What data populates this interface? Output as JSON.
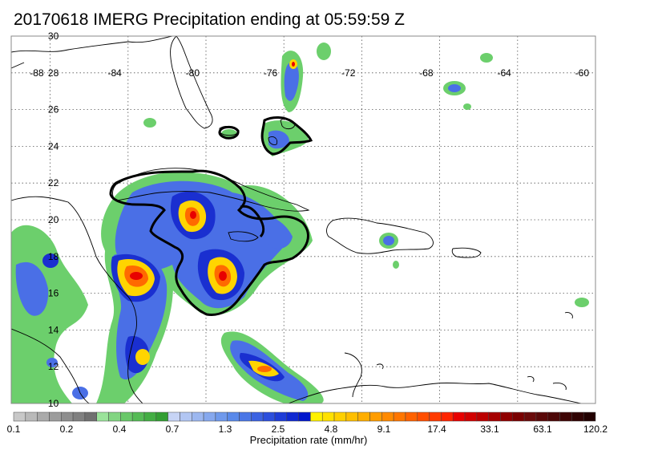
{
  "title": "20170618 IMERG Precipitation ending at 05:59:59 Z",
  "map": {
    "lon_range": [
      -90,
      -60
    ],
    "lat_range": [
      10,
      30
    ],
    "lon_ticks": [
      "-88",
      "-84",
      "-80",
      "-76",
      "-72",
      "-68",
      "-64",
      "-60"
    ],
    "lat_ticks": [
      "30",
      "28",
      "26",
      "24",
      "22",
      "20",
      "18",
      "16",
      "14",
      "12",
      "10"
    ],
    "gridlines": true,
    "grid_style": "dotted",
    "coastline_color": "#000000"
  },
  "colorbar": {
    "label": "Precipitation rate (mm/hr)",
    "tick_labels": [
      "0.1",
      "0.2",
      "0.4",
      "0.7",
      "1.3",
      "2.5",
      "4.8",
      "9.1",
      "17.4",
      "33.1",
      "63.1",
      "120.2"
    ],
    "colors": [
      "#c8c8c8",
      "#b9b9b9",
      "#aaaaaa",
      "#9c9c9c",
      "#8e8e8e",
      "#808080",
      "#707070",
      "#9be39b",
      "#82d582",
      "#69c869",
      "#55bb55",
      "#43ae43",
      "#339e33",
      "#c7d4f5",
      "#b2c6f3",
      "#9cb7f0",
      "#86a8ee",
      "#6f99ec",
      "#5989ea",
      "#4a76e6",
      "#3b62e2",
      "#2c4fdd",
      "#1e3cd8",
      "#1029d2",
      "#0016cc",
      "#fff200",
      "#ffe100",
      "#ffd000",
      "#ffbf00",
      "#ffae00",
      "#ff9d00",
      "#ff8a00",
      "#ff7600",
      "#ff6200",
      "#ff4e00",
      "#ff3a00",
      "#ff2400",
      "#e80000",
      "#d20000",
      "#bc0000",
      "#a60000",
      "#900000",
      "#7a0000",
      "#6a0a0a",
      "#5a0808",
      "#4c0707",
      "#3e0505",
      "#300303",
      "#220101"
    ]
  }
}
